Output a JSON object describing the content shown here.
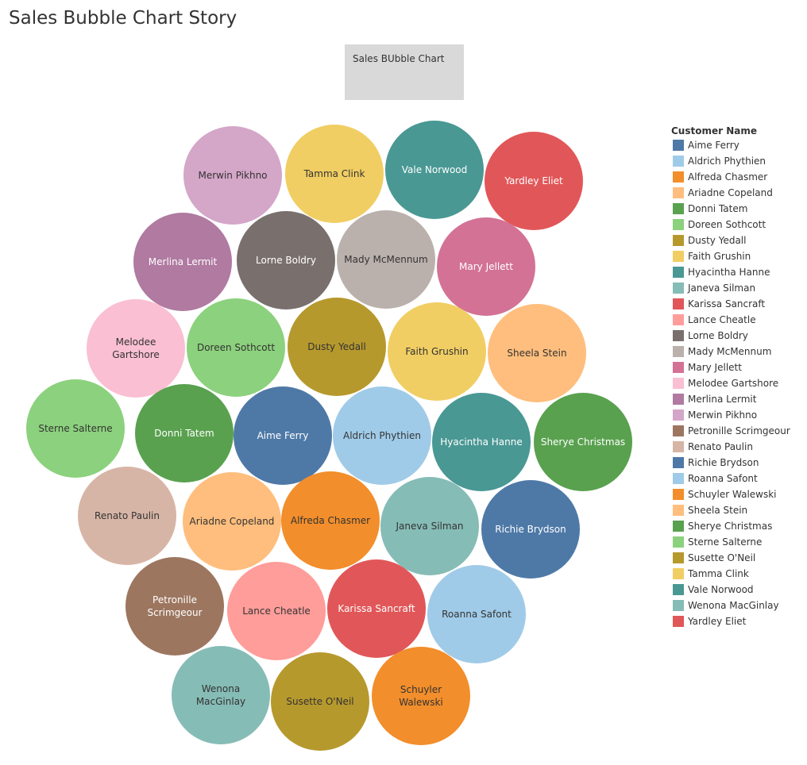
{
  "story": {
    "title": "Sales Bubble Chart Story"
  },
  "caption": {
    "label": "Sales BUbble Chart"
  },
  "chart_data": {
    "type": "bubble",
    "title": "",
    "legend": {
      "title": "Customer Name",
      "placement": "right"
    },
    "bubbles": [
      {
        "name": "Merwin Pikhno",
        "lines": [
          "Merwin Pikhno"
        ],
        "color": "#d4a6c8",
        "text": "#333333"
      },
      {
        "name": "Tamma Clink",
        "lines": [
          "Tamma Clink"
        ],
        "color": "#f1ce63",
        "text": "#333333"
      },
      {
        "name": "Vale Norwood",
        "lines": [
          "Vale Norwood"
        ],
        "color": "#499894",
        "text": "#ffffff"
      },
      {
        "name": "Yardley Eliet",
        "lines": [
          "Yardley Eliet"
        ],
        "color": "#e15759",
        "text": "#ffffff"
      },
      {
        "name": "Merlina Lermit",
        "lines": [
          "Merlina Lermit"
        ],
        "color": "#b07aa1",
        "text": "#ffffff"
      },
      {
        "name": "Lorne Boldry",
        "lines": [
          "Lorne Boldry"
        ],
        "color": "#79706e",
        "text": "#ffffff"
      },
      {
        "name": "Mady McMennum",
        "lines": [
          "Mady McMennum"
        ],
        "color": "#bab0ac",
        "text": "#333333"
      },
      {
        "name": "Mary Jellett",
        "lines": [
          "Mary Jellett"
        ],
        "color": "#d37295",
        "text": "#ffffff"
      },
      {
        "name": "Melodee Gartshore",
        "lines": [
          "Melodee",
          "Gartshore"
        ],
        "color": "#fabfd2",
        "text": "#333333"
      },
      {
        "name": "Doreen Sothcott",
        "lines": [
          "Doreen Sothcott"
        ],
        "color": "#8cd17d",
        "text": "#333333"
      },
      {
        "name": "Dusty Yedall",
        "lines": [
          "Dusty Yedall"
        ],
        "color": "#b6992d",
        "text": "#333333"
      },
      {
        "name": "Faith Grushin",
        "lines": [
          "Faith Grushin"
        ],
        "color": "#f1ce63",
        "text": "#333333"
      },
      {
        "name": "Sheela Stein",
        "lines": [
          "Sheela Stein"
        ],
        "color": "#ffbe7d",
        "text": "#333333"
      },
      {
        "name": "Sterne Salterne",
        "lines": [
          "Sterne Salterne"
        ],
        "color": "#8cd17d",
        "text": "#333333"
      },
      {
        "name": "Donni Tatem",
        "lines": [
          "Donni Tatem"
        ],
        "color": "#59a14f",
        "text": "#ffffff"
      },
      {
        "name": "Aime Ferry",
        "lines": [
          "Aime Ferry"
        ],
        "color": "#4e79a7",
        "text": "#ffffff"
      },
      {
        "name": "Aldrich Phythien",
        "lines": [
          "Aldrich Phythien"
        ],
        "color": "#a0cbe8",
        "text": "#333333"
      },
      {
        "name": "Hyacintha Hanne",
        "lines": [
          "Hyacintha Hanne"
        ],
        "color": "#499894",
        "text": "#ffffff"
      },
      {
        "name": "Sherye Christmas",
        "lines": [
          "Sherye Christmas"
        ],
        "color": "#59a14f",
        "text": "#ffffff"
      },
      {
        "name": "Renato Paulin",
        "lines": [
          "Renato Paulin"
        ],
        "color": "#d7b5a6",
        "text": "#333333"
      },
      {
        "name": "Ariadne Copeland",
        "lines": [
          "Ariadne Copeland"
        ],
        "color": "#ffbe7d",
        "text": "#333333"
      },
      {
        "name": "Alfreda Chasmer",
        "lines": [
          "Alfreda Chasmer"
        ],
        "color": "#f28e2b",
        "text": "#333333"
      },
      {
        "name": "Janeva Silman",
        "lines": [
          "Janeva Silman"
        ],
        "color": "#86bcb6",
        "text": "#333333"
      },
      {
        "name": "Richie Brydson",
        "lines": [
          "Richie Brydson"
        ],
        "color": "#4e79a7",
        "text": "#ffffff"
      },
      {
        "name": "Petronille Scrimgeour",
        "lines": [
          "Petronille",
          "Scrimgeour"
        ],
        "color": "#9d7660",
        "text": "#ffffff"
      },
      {
        "name": "Lance Cheatle",
        "lines": [
          "Lance Cheatle"
        ],
        "color": "#ff9d9a",
        "text": "#333333"
      },
      {
        "name": "Karissa Sancraft",
        "lines": [
          "Karissa Sancraft"
        ],
        "color": "#e15759",
        "text": "#ffffff"
      },
      {
        "name": "Roanna Safont",
        "lines": [
          "Roanna Safont"
        ],
        "color": "#a0cbe8",
        "text": "#333333"
      },
      {
        "name": "Wenona MacGinlay",
        "lines": [
          "Wenona",
          "MacGinlay"
        ],
        "color": "#86bcb6",
        "text": "#333333"
      },
      {
        "name": "Susette O'Neil",
        "lines": [
          "Susette O'Neil"
        ],
        "color": "#b6992d",
        "text": "#333333"
      },
      {
        "name": "Schuyler Walewski",
        "lines": [
          "Schuyler",
          "Walewski"
        ],
        "color": "#f28e2b",
        "text": "#333333"
      }
    ],
    "legend_entries": [
      {
        "name": "Aime Ferry",
        "color": "#4e79a7"
      },
      {
        "name": "Aldrich Phythien",
        "color": "#a0cbe8"
      },
      {
        "name": "Alfreda Chasmer",
        "color": "#f28e2b"
      },
      {
        "name": "Ariadne Copeland",
        "color": "#ffbe7d"
      },
      {
        "name": "Donni Tatem",
        "color": "#59a14f"
      },
      {
        "name": "Doreen Sothcott",
        "color": "#8cd17d"
      },
      {
        "name": "Dusty Yedall",
        "color": "#b6992d"
      },
      {
        "name": "Faith Grushin",
        "color": "#f1ce63"
      },
      {
        "name": "Hyacintha Hanne",
        "color": "#499894"
      },
      {
        "name": "Janeva Silman",
        "color": "#86bcb6"
      },
      {
        "name": "Karissa Sancraft",
        "color": "#e15759"
      },
      {
        "name": "Lance Cheatle",
        "color": "#ff9d9a"
      },
      {
        "name": "Lorne Boldry",
        "color": "#79706e"
      },
      {
        "name": "Mady McMennum",
        "color": "#bab0ac"
      },
      {
        "name": "Mary Jellett",
        "color": "#d37295"
      },
      {
        "name": "Melodee Gartshore",
        "color": "#fabfd2"
      },
      {
        "name": "Merlina Lermit",
        "color": "#b07aa1"
      },
      {
        "name": "Merwin Pikhno",
        "color": "#d4a6c8"
      },
      {
        "name": "Petronille Scrimgeour",
        "color": "#9d7660"
      },
      {
        "name": "Renato Paulin",
        "color": "#d7b5a6"
      },
      {
        "name": "Richie Brydson",
        "color": "#4e79a7"
      },
      {
        "name": "Roanna Safont",
        "color": "#a0cbe8"
      },
      {
        "name": "Schuyler Walewski",
        "color": "#f28e2b"
      },
      {
        "name": "Sheela Stein",
        "color": "#ffbe7d"
      },
      {
        "name": "Sherye Christmas",
        "color": "#59a14f"
      },
      {
        "name": "Sterne Salterne",
        "color": "#8cd17d"
      },
      {
        "name": "Susette O'Neil",
        "color": "#b6992d"
      },
      {
        "name": "Tamma Clink",
        "color": "#f1ce63"
      },
      {
        "name": "Vale Norwood",
        "color": "#499894"
      },
      {
        "name": "Wenona MacGinlay",
        "color": "#86bcb6"
      },
      {
        "name": "Yardley Eliet",
        "color": "#e15759"
      }
    ]
  }
}
